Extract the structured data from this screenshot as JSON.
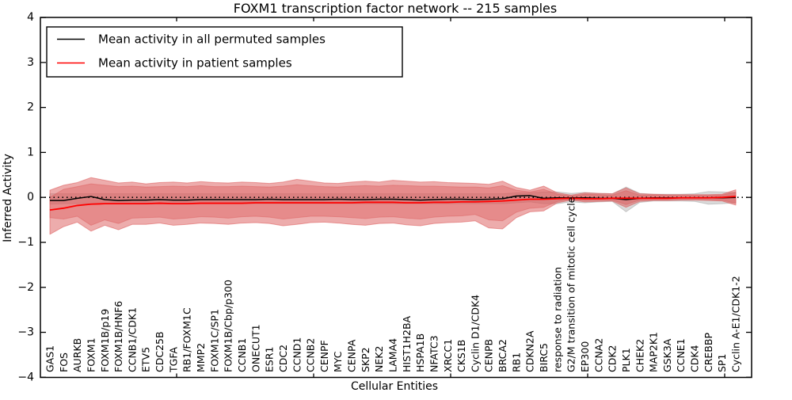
{
  "title": "FOXM1 transcription factor network -- 215 samples",
  "xlabel": "Cellular Entities",
  "ylabel": "Inferred Activity",
  "legend": {
    "items": [
      {
        "label": "Mean activity in all permuted samples",
        "color": "#000000"
      },
      {
        "label": "Mean activity in patient samples",
        "color": "#ff0000"
      }
    ]
  },
  "colors": {
    "background": "#ffffff",
    "axis": "#000000",
    "zero_line": "#000000",
    "patient_line": "#ff0000",
    "permuted_line": "#000000",
    "patient_band": "#dc5a5a",
    "permuted_band": "#8c8c8c"
  },
  "chart_data": {
    "type": "line",
    "title": "FOXM1 transcription factor network -- 215 samples",
    "xlabel": "Cellular Entities",
    "ylabel": "Inferred Activity",
    "ylim": [
      -4,
      4
    ],
    "yticks": [
      4,
      3,
      2,
      1,
      0,
      -1,
      -2,
      -3,
      -4
    ],
    "ytick_labels": [
      "4",
      "3",
      "2",
      "1",
      "0",
      "−1",
      "−2",
      "−3",
      "−4"
    ],
    "grid": false,
    "legend_position": "upper left",
    "zero_line": {
      "y": 0,
      "style": "dotted"
    },
    "categories": [
      "GAS1",
      "FOS",
      "AURKB",
      "FOXM1",
      "FOXM1B/p19",
      "FOXM1B/HNF6",
      "CCNB1/CDK1",
      "ETV5",
      "CDC25B",
      "TGFA",
      "RB1/FOXM1C",
      "MMP2",
      "FOXM1C/SP1",
      "FOXM1B/Cbp/p300",
      "CCNB1",
      "ONECUT1",
      "ESR1",
      "CDC2",
      "CCND1",
      "CCNB2",
      "CENPF",
      "MYC",
      "CENPA",
      "SKP2",
      "NEK2",
      "LAMA4",
      "HIST1H2BA",
      "HSPA1B",
      "NFATC3",
      "XRCC1",
      "CKS1B",
      "Cyclin D1/CDK4",
      "CENPB",
      "BRCA2",
      "RB1",
      "CDKN2A",
      "BIRC5",
      "response to radiation",
      "G2/M transition of mitotic cell cycle",
      "EP300",
      "CCNA2",
      "CDK2",
      "PLK1",
      "CHEK2",
      "MAP2K1",
      "GSK3A",
      "CCNE1",
      "CDK4",
      "CREBBP",
      "SP1",
      "Cyclin A-E1/CDK1-2"
    ],
    "series": [
      {
        "name": "Mean activity in all permuted samples",
        "color": "#000000",
        "values": [
          -0.07,
          -0.07,
          -0.02,
          0.02,
          -0.05,
          -0.07,
          -0.06,
          -0.06,
          -0.05,
          -0.06,
          -0.06,
          -0.05,
          -0.05,
          -0.05,
          -0.05,
          -0.05,
          -0.04,
          -0.05,
          -0.05,
          -0.05,
          -0.05,
          -0.04,
          -0.05,
          -0.05,
          -0.04,
          -0.04,
          -0.05,
          -0.06,
          -0.05,
          -0.04,
          -0.04,
          -0.05,
          -0.04,
          -0.03,
          0.03,
          0.04,
          -0.02,
          -0.01,
          -0.01,
          -0.01,
          -0.02,
          -0.02,
          -0.05,
          -0.02,
          -0.01,
          -0.01,
          -0.01,
          -0.01,
          -0.01,
          -0.01,
          0.0
        ]
      },
      {
        "name": "Mean activity in patient samples",
        "color": "#ff0000",
        "values": [
          -0.28,
          -0.24,
          -0.18,
          -0.15,
          -0.14,
          -0.14,
          -0.14,
          -0.14,
          -0.13,
          -0.14,
          -0.14,
          -0.13,
          -0.13,
          -0.13,
          -0.13,
          -0.12,
          -0.12,
          -0.12,
          -0.12,
          -0.12,
          -0.12,
          -0.12,
          -0.12,
          -0.11,
          -0.11,
          -0.11,
          -0.12,
          -0.12,
          -0.11,
          -0.11,
          -0.1,
          -0.1,
          -0.09,
          -0.08,
          -0.06,
          -0.04,
          -0.04,
          -0.03,
          -0.02,
          -0.03,
          -0.03,
          -0.02,
          -0.02,
          -0.02,
          -0.02,
          -0.02,
          -0.01,
          -0.01,
          -0.01,
          0.0,
          0.02
        ]
      }
    ],
    "bands": [
      {
        "name": "permuted-sample-range",
        "color": "#8c8c8c",
        "fill_opacity": 0.32,
        "edge_opacity": 0.4,
        "upper": [
          0.08,
          0.08,
          0.08,
          0.08,
          0.08,
          0.08,
          0.08,
          0.08,
          0.08,
          0.08,
          0.08,
          0.08,
          0.08,
          0.08,
          0.08,
          0.08,
          0.08,
          0.08,
          0.08,
          0.08,
          0.08,
          0.08,
          0.08,
          0.08,
          0.08,
          0.08,
          0.08,
          0.08,
          0.08,
          0.08,
          0.08,
          0.08,
          0.08,
          0.08,
          0.1,
          0.1,
          0.12,
          0.12,
          0.09,
          0.11,
          0.09,
          0.08,
          0.23,
          0.09,
          0.07,
          0.07,
          0.07,
          0.08,
          0.13,
          0.12,
          0.1
        ],
        "lower": [
          -0.15,
          -0.14,
          -0.14,
          -0.14,
          -0.14,
          -0.14,
          -0.14,
          -0.14,
          -0.14,
          -0.14,
          -0.14,
          -0.14,
          -0.14,
          -0.14,
          -0.14,
          -0.14,
          -0.14,
          -0.14,
          -0.14,
          -0.14,
          -0.14,
          -0.14,
          -0.14,
          -0.14,
          -0.14,
          -0.14,
          -0.14,
          -0.14,
          -0.14,
          -0.14,
          -0.14,
          -0.14,
          -0.14,
          -0.14,
          -0.12,
          -0.1,
          -0.14,
          -0.14,
          -0.1,
          -0.12,
          -0.1,
          -0.09,
          -0.32,
          -0.11,
          -0.08,
          -0.08,
          -0.08,
          -0.09,
          -0.15,
          -0.14,
          -0.12
        ]
      },
      {
        "name": "patient-band-outer",
        "color": "#dc5a5a",
        "fill_opacity": 0.5,
        "edge_opacity": 0.55,
        "upper": [
          0.16,
          0.27,
          0.33,
          0.44,
          0.38,
          0.32,
          0.34,
          0.3,
          0.33,
          0.34,
          0.32,
          0.35,
          0.33,
          0.32,
          0.34,
          0.33,
          0.31,
          0.34,
          0.4,
          0.36,
          0.32,
          0.31,
          0.34,
          0.36,
          0.34,
          0.38,
          0.36,
          0.34,
          0.35,
          0.33,
          0.32,
          0.31,
          0.29,
          0.36,
          0.22,
          0.16,
          0.25,
          0.1,
          0.05,
          0.1,
          0.09,
          0.08,
          0.21,
          0.08,
          0.07,
          0.06,
          0.06,
          0.06,
          0.06,
          0.07,
          0.17
        ],
        "lower": [
          -0.82,
          -0.65,
          -0.55,
          -0.75,
          -0.62,
          -0.72,
          -0.6,
          -0.6,
          -0.57,
          -0.62,
          -0.6,
          -0.57,
          -0.58,
          -0.6,
          -0.57,
          -0.56,
          -0.58,
          -0.63,
          -0.6,
          -0.56,
          -0.55,
          -0.57,
          -0.6,
          -0.62,
          -0.58,
          -0.57,
          -0.61,
          -0.63,
          -0.58,
          -0.56,
          -0.55,
          -0.52,
          -0.68,
          -0.7,
          -0.45,
          -0.32,
          -0.3,
          -0.12,
          -0.06,
          -0.1,
          -0.09,
          -0.08,
          -0.22,
          -0.09,
          -0.07,
          -0.07,
          -0.06,
          -0.06,
          -0.07,
          -0.08,
          -0.17
        ]
      },
      {
        "name": "patient-band-inner",
        "color": "#dc5a5a",
        "fill_opacity": 0.4,
        "edge_opacity": 0.45,
        "upper": [
          0.0,
          0.18,
          0.24,
          0.3,
          0.27,
          0.24,
          0.25,
          0.23,
          0.24,
          0.25,
          0.24,
          0.26,
          0.24,
          0.24,
          0.25,
          0.24,
          0.23,
          0.25,
          0.28,
          0.26,
          0.24,
          0.23,
          0.25,
          0.26,
          0.25,
          0.27,
          0.26,
          0.25,
          0.25,
          0.24,
          0.23,
          0.23,
          0.21,
          0.26,
          0.16,
          0.12,
          0.18,
          0.07,
          0.03,
          0.07,
          0.06,
          0.05,
          0.15,
          0.05,
          0.05,
          0.04,
          0.04,
          0.04,
          0.04,
          0.05,
          0.12
        ],
        "lower": [
          -0.45,
          -0.48,
          -0.42,
          -0.62,
          -0.5,
          -0.58,
          -0.46,
          -0.45,
          -0.44,
          -0.48,
          -0.46,
          -0.43,
          -0.44,
          -0.46,
          -0.43,
          -0.42,
          -0.44,
          -0.48,
          -0.45,
          -0.42,
          -0.42,
          -0.43,
          -0.45,
          -0.47,
          -0.44,
          -0.43,
          -0.46,
          -0.48,
          -0.44,
          -0.42,
          -0.41,
          -0.38,
          -0.5,
          -0.52,
          -0.33,
          -0.24,
          -0.22,
          -0.09,
          -0.04,
          -0.07,
          -0.06,
          -0.06,
          -0.16,
          -0.06,
          -0.05,
          -0.05,
          -0.04,
          -0.04,
          -0.05,
          -0.06,
          -0.13
        ]
      }
    ]
  }
}
